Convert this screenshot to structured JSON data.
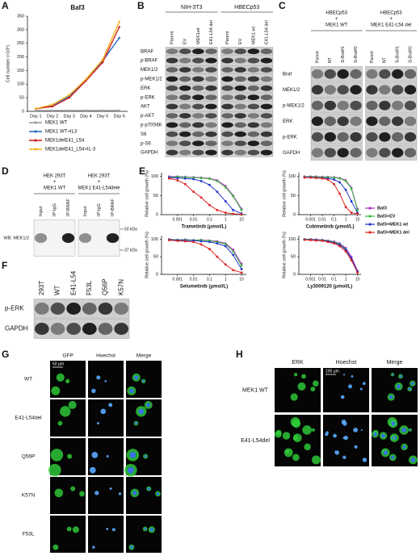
{
  "panel_labels": [
    "A",
    "B",
    "C",
    "D",
    "E",
    "F",
    "G",
    "H"
  ],
  "chart_data": [
    {
      "type": "line",
      "title": "Baf3",
      "ylabel": "Cell number (×10⁶)",
      "categories": [
        "Day 1",
        "Day 2",
        "Day 3",
        "Day 4",
        "Day 5",
        "Day 6"
      ],
      "ylim": [
        0,
        350
      ],
      "yticks": [
        0,
        50,
        100,
        150,
        200,
        250,
        300,
        350
      ],
      "series": [
        {
          "name": "MEK1 WT",
          "color": "#9a9a9a",
          "values": [
            3,
            3,
            3,
            3,
            3,
            3
          ]
        },
        {
          "name": "MEK1 WT+IL3",
          "color": "#2a6fc9",
          "values": [
            10,
            20,
            55,
            115,
            185,
            270
          ]
        },
        {
          "name": "MEK1delE41_L54",
          "color": "#d22020",
          "values": [
            10,
            18,
            50,
            112,
            180,
            310
          ]
        },
        {
          "name": "MEK1delE41_L54+IL-3",
          "color": "#f2b61c",
          "values": [
            10,
            25,
            60,
            118,
            190,
            330
          ]
        }
      ]
    },
    {
      "type": "line",
      "xscale": "log",
      "xlabel": "Trametinib (μmol/L)",
      "ylabel": "Relative cell growth (%)",
      "x": [
        0.0003,
        0.001,
        0.003,
        0.01,
        0.03,
        0.1,
        0.3,
        1,
        3,
        10
      ],
      "xlim": [
        0.0001,
        20
      ],
      "xticks": [
        0.001,
        0.01,
        0.1,
        1,
        10
      ],
      "ylim": [
        0,
        110
      ],
      "yticks": [
        0,
        50,
        100
      ],
      "series": [
        {
          "name": "Baf3",
          "color": "#b02cc9",
          "values": [
            100,
            100,
            99,
            98,
            97,
            95,
            90,
            75,
            50,
            15
          ]
        },
        {
          "name": "Baf3+EV",
          "color": "#3bb83b",
          "values": [
            98,
            99,
            98,
            97,
            96,
            94,
            88,
            72,
            48,
            12
          ]
        },
        {
          "name": "Baf3+MEK1 wt",
          "color": "#2233cc",
          "values": [
            97,
            96,
            95,
            93,
            88,
            78,
            60,
            35,
            12,
            3
          ]
        },
        {
          "name": "Baf3+MEK1 del",
          "color": "#dd2222",
          "values": [
            95,
            90,
            80,
            60,
            45,
            25,
            12,
            5,
            2,
            1
          ]
        }
      ]
    },
    {
      "type": "line",
      "xscale": "log",
      "xlabel": "Cobimetinib (μmol/L)",
      "ylabel": "Relative cell growth (%)",
      "x": [
        0.0003,
        0.001,
        0.003,
        0.01,
        0.03,
        0.1,
        0.3,
        1,
        3,
        10
      ],
      "xlim": [
        0.0001,
        20
      ],
      "xticks": [
        0.001,
        0.01,
        0.1,
        1,
        10
      ],
      "ylim": [
        0,
        110
      ],
      "yticks": [
        0,
        50,
        100
      ],
      "series": [
        {
          "color": "#b02cc9",
          "values": [
            100,
            100,
            100,
            99,
            99,
            98,
            96,
            90,
            70,
            15
          ]
        },
        {
          "color": "#3bb83b",
          "values": [
            99,
            100,
            99,
            98,
            98,
            97,
            95,
            88,
            68,
            12
          ]
        },
        {
          "color": "#2233cc",
          "values": [
            98,
            98,
            97,
            96,
            95,
            92,
            85,
            65,
            35,
            5
          ]
        },
        {
          "color": "#dd2222",
          "values": [
            97,
            97,
            96,
            95,
            92,
            80,
            55,
            20,
            5,
            2
          ]
        }
      ]
    },
    {
      "type": "line",
      "xscale": "log",
      "xlabel": "Selumetinib (μmol/L)",
      "ylabel": "Relative cell growth (%)",
      "x": [
        0.0003,
        0.001,
        0.003,
        0.01,
        0.03,
        0.1,
        0.3,
        1,
        3,
        10
      ],
      "xlim": [
        0.0001,
        20
      ],
      "xticks": [
        0.001,
        0.01,
        0.1,
        1,
        10
      ],
      "ylim": [
        0,
        110
      ],
      "yticks": [
        0,
        50,
        100
      ],
      "series": [
        {
          "color": "#b02cc9",
          "values": [
            100,
            98,
            99,
            97,
            98,
            96,
            94,
            88,
            70,
            30
          ]
        },
        {
          "color": "#3bb83b",
          "values": [
            99,
            98,
            98,
            97,
            97,
            95,
            92,
            86,
            65,
            25
          ]
        },
        {
          "color": "#2233cc",
          "values": [
            98,
            97,
            96,
            96,
            94,
            92,
            88,
            80,
            55,
            15
          ]
        },
        {
          "color": "#dd2222",
          "values": [
            97,
            95,
            94,
            92,
            85,
            72,
            50,
            28,
            12,
            5
          ]
        }
      ]
    },
    {
      "type": "line",
      "xscale": "log",
      "xlabel": "Ly3009120 (μmol/L)",
      "ylabel": "Relative cell growth (%)",
      "x": [
        0.0003,
        0.001,
        0.003,
        0.01,
        0.03,
        0.1,
        0.3,
        1,
        3,
        10
      ],
      "xlim": [
        0.0001,
        20
      ],
      "xticks": [
        0.001,
        0.01,
        0.1,
        1,
        10
      ],
      "ylim": [
        0,
        110
      ],
      "yticks": [
        0,
        50,
        100
      ],
      "series": [
        {
          "color": "#b02cc9",
          "values": [
            100,
            100,
            99,
            98,
            96,
            93,
            88,
            75,
            50,
            10
          ]
        },
        {
          "color": "#3bb83b",
          "values": [
            100,
            99,
            98,
            97,
            95,
            92,
            86,
            72,
            45,
            8
          ]
        },
        {
          "color": "#2233cc",
          "values": [
            99,
            98,
            97,
            96,
            94,
            90,
            84,
            70,
            45,
            8
          ]
        },
        {
          "color": "#dd2222",
          "values": [
            98,
            97,
            96,
            95,
            92,
            88,
            80,
            65,
            40,
            5
          ]
        }
      ]
    }
  ],
  "blot_b": {
    "groups": [
      {
        "title": "NIH-3T3",
        "lanes": [
          "Parent",
          "EV",
          "MEK1wt",
          "E41-L54 del"
        ]
      },
      {
        "title": "HBECp53",
        "lanes": [
          "Parent",
          "EV",
          "MEK1 wt",
          "E41-L54 del"
        ]
      }
    ],
    "rows": [
      "BRAF",
      "p-BRAF",
      "MEK1/2",
      "p-MEK1/2",
      "ERK",
      "p-ERK",
      "AKT",
      "p-AKT",
      "p-p70S6K",
      "S6",
      "p-S6",
      "GAPDH"
    ]
  },
  "blot_c": {
    "groups": [
      {
        "title": [
          "HBECp53",
          "+",
          "MEK1 WT"
        ],
        "lanes": [
          "Parent",
          "NT",
          "Si-Braf#1",
          "Si-Braf#2"
        ]
      },
      {
        "title": [
          "HBECp53",
          "+",
          "MEK1 E41-L54 del"
        ],
        "lanes": [
          "Parent",
          "NT",
          "Si-Braf#1",
          "Si-Braf#2"
        ]
      }
    ],
    "rows": [
      "Braf",
      "MEK1/2",
      "p-MEK1/2",
      "ERK",
      "p-ERK",
      "GAPDH"
    ]
  },
  "blot_d": {
    "groups": [
      {
        "title": [
          "HEK 293T",
          "+",
          "MEK1 WT"
        ],
        "lanes": [
          "Input",
          "IP-IgG",
          "IP-BRAF"
        ]
      },
      {
        "title": [
          "HEK 293T",
          "+",
          "MEK1 E41-L54dele"
        ],
        "lanes": [
          "Input",
          "IP-IgG",
          "IP-BRAF"
        ]
      }
    ],
    "rows": [
      "WB: MEK1/2"
    ],
    "markers": [
      "50 kDa",
      "37 kDa"
    ]
  },
  "blot_f": {
    "groups": [
      {
        "lanes": [
          "293T",
          "WT",
          "E41-L54",
          "F53L",
          "Q56P",
          "K57N"
        ]
      }
    ],
    "rows": [
      "p-ERK",
      "GAPDH"
    ]
  },
  "panel_g": {
    "columns": [
      "GFP",
      "Hoechst",
      "Merge"
    ],
    "rows": [
      "WT",
      "E41-L54del",
      "Q56P",
      "K57N",
      "F53L"
    ],
    "scale": "50 μm"
  },
  "panel_h": {
    "columns": [
      "ERK",
      "Hoechst",
      "Merge"
    ],
    "rows": [
      "MEK1 WT",
      "E41-L54del"
    ],
    "scale": "100 μm"
  }
}
